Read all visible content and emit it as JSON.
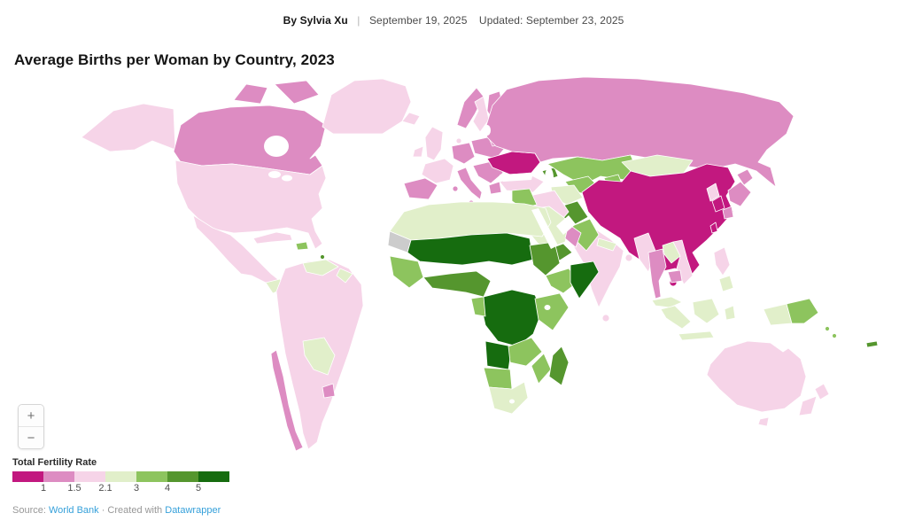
{
  "header": {
    "byline_prefix": "By Sylvia Xu",
    "separator": "|",
    "date": "September 19, 2025",
    "updated": "Updated: September 23, 2025"
  },
  "title": "Average Births per Woman by Country, 2023",
  "map": {
    "zoom_in_label": "+",
    "zoom_out_label": "−",
    "bin_colors": {
      "b1": "#c2187f",
      "b2": "#dd8cc2",
      "b3": "#f6d4e8",
      "b4": "#e1efca",
      "b5": "#8dc45e",
      "b6": "#55962e",
      "b7": "#166c0f",
      "nodata": "#cccccc"
    },
    "regions": {
      "alaska": "b3",
      "canada": "b2",
      "arctic-islands-1": "b2",
      "arctic-islands-2": "b2",
      "greenland": "b3",
      "iceland": "b3",
      "usa": "b3",
      "mexico": "b3",
      "guatemala": "b4",
      "nicaragua": "b4",
      "costa-rica": "b2",
      "panama": "b3",
      "cuba": "b3",
      "hispaniola": "b5",
      "lesser-antilles": "b6",
      "south-america-main": "b3",
      "venezuela": "b4",
      "guyana": "b4",
      "bolivia-paraguay": "b4",
      "chile": "b2",
      "uruguay": "b2",
      "uk": "b3",
      "ireland": "b3",
      "norway": "b2",
      "sweden": "b3",
      "finland": "b2",
      "denmark": "b3",
      "france": "b3",
      "iberia": "b2",
      "germany": "b2",
      "italy": "b2",
      "sicily": "b2",
      "sardinia": "b2",
      "poland-east": "b2",
      "balkans": "b2",
      "greece": "b2",
      "belarus-baltic": "b2",
      "ukraine": "b1",
      "turkey": "b3",
      "levant": "b3",
      "caucasus": "b6",
      "russia": "b2",
      "kazakhstan": "b5",
      "uzbekistan": "b5",
      "turkmenistan": "b4",
      "kyrgyzstan": "b5",
      "mongolia": "b4",
      "china": "b1",
      "hainan": "b1",
      "taiwan": "b1",
      "north-korea": "b3",
      "south-korea": "b1",
      "japan-hokkaido": "b2",
      "japan-honshu": "b2",
      "japan-kyushu": "b2",
      "india": "b3",
      "sri-lanka": "b3",
      "nepal": "b4",
      "bangladesh": "b3",
      "afghanistan": "b6",
      "pakistan": "b5",
      "iran": "b3",
      "iraq": "b5",
      "saudi-arabia": "b4",
      "yemen": "b6",
      "oman": "b2",
      "north-africa": "b4",
      "western-sahara": "nodata",
      "sahel": "b7",
      "senegal-guinea": "b5",
      "gulf-of-guinea": "b6",
      "sudan": "b6",
      "ethiopia": "b5",
      "somalia": "b7",
      "central-africa-drc": "b7",
      "gabon-congo": "b5",
      "east-africa": "b5",
      "angola": "b7",
      "zambia-zimbabwe": "b5",
      "mozambique": "b5",
      "namibia-botswana": "b5",
      "south-africa": "b4",
      "madagascar": "b6",
      "myanmar": "b3",
      "thailand": "b2",
      "laos": "b4",
      "vietnam": "b3",
      "cambodia": "b2",
      "malaysia": "b4",
      "sumatra": "b4",
      "java": "b4",
      "borneo": "b4",
      "sulawesi": "b4",
      "west-papua": "b4",
      "papua-new-guinea": "b5",
      "solomon-1": "b5",
      "solomon-2": "b5",
      "luzon": "b3",
      "mindanao": "b4",
      "australia": "b3",
      "tasmania": "b3",
      "nz-north": "b3",
      "nz-south": "b3",
      "new-caledonia": "b6"
    }
  },
  "legend": {
    "title": "Total Fertility Rate",
    "bin_order": [
      "b1",
      "b2",
      "b3",
      "b4",
      "b5",
      "b6",
      "b7"
    ],
    "ticks": [
      "1",
      "1.5",
      "2.1",
      "3",
      "4",
      "5"
    ]
  },
  "footer": {
    "source_prefix": "Source:",
    "source_link": "World Bank",
    "middle_text": "· Created with",
    "tool_link": "Datawrapper"
  }
}
